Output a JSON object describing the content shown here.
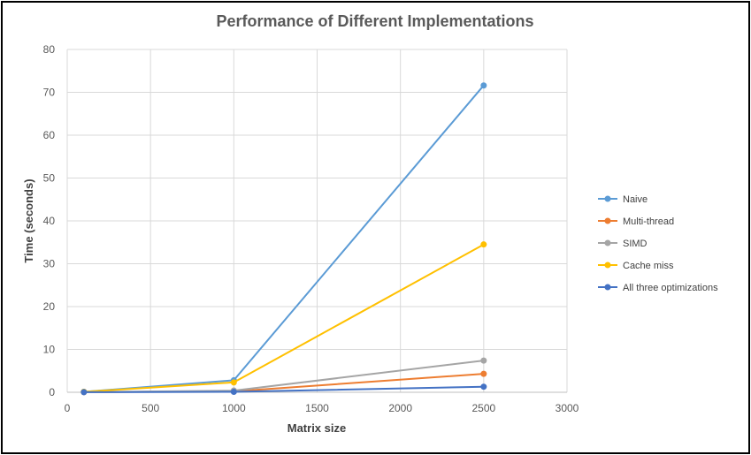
{
  "chart_data": {
    "type": "scatter",
    "title": "Performance of Different Implementations",
    "xlabel": "Matrix size",
    "ylabel": "Time (seconds)",
    "xlim": [
      0,
      3000
    ],
    "ylim": [
      0,
      80
    ],
    "xticks": [
      0,
      500,
      1000,
      1500,
      2000,
      2500,
      3000
    ],
    "yticks": [
      0,
      10,
      20,
      30,
      40,
      50,
      60,
      70,
      80
    ],
    "grid": true,
    "legend": "right",
    "series": [
      {
        "name": "Naive",
        "color": "#5b9bd5",
        "x": [
          100,
          1000,
          2500
        ],
        "y": [
          0.1,
          2.8,
          71.6
        ]
      },
      {
        "name": "Multi-thread",
        "color": "#ed7d31",
        "x": [
          100,
          1000,
          2500
        ],
        "y": [
          0.05,
          0.2,
          4.3
        ]
      },
      {
        "name": "SIMD",
        "color": "#a5a5a5",
        "x": [
          100,
          1000,
          2500
        ],
        "y": [
          0.05,
          0.4,
          7.4
        ]
      },
      {
        "name": "Cache miss",
        "color": "#ffc000",
        "x": [
          100,
          1000,
          2500
        ],
        "y": [
          0.1,
          2.3,
          34.5
        ]
      },
      {
        "name": "All three optimizations",
        "color": "#4472c4",
        "x": [
          100,
          1000,
          2500
        ],
        "y": [
          0.02,
          0.1,
          1.3
        ]
      }
    ]
  }
}
